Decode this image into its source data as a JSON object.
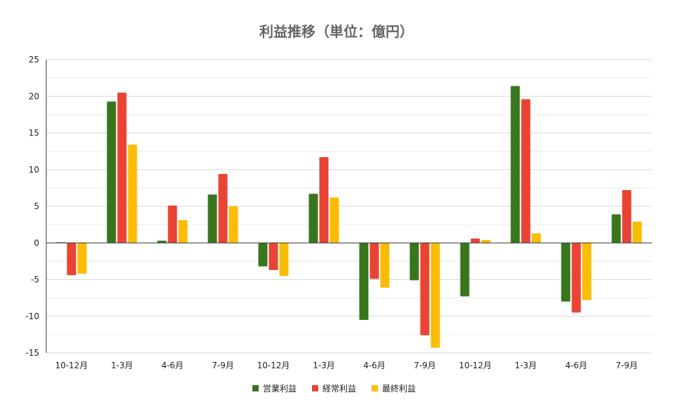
{
  "chart_data": {
    "type": "bar",
    "title": "利益推移（単位：億円）",
    "xlabel": "",
    "ylabel": "",
    "ylim": [
      -15,
      25
    ],
    "yticks": [
      25,
      20,
      15,
      10,
      5,
      0,
      -5,
      -10,
      -15
    ],
    "grid": true,
    "legend_position": "bottom",
    "categories": [
      "10-12月",
      "1-3月",
      "4-6月",
      "7-9月",
      "10-12月",
      "1-3月",
      "4-6月",
      "7-9月",
      "10-12月",
      "1-3月",
      "4-6月",
      "7-9月"
    ],
    "series": [
      {
        "name": "営業利益",
        "color": "#38761d",
        "values": [
          0.1,
          19.3,
          0.3,
          6.6,
          -3.2,
          6.7,
          -10.5,
          -5.1,
          -7.3,
          21.4,
          -8.0,
          3.9
        ]
      },
      {
        "name": "経常利益",
        "color": "#ea4335",
        "values": [
          -4.4,
          20.5,
          5.1,
          9.4,
          -3.7,
          11.7,
          -4.9,
          -12.6,
          0.6,
          19.6,
          -9.5,
          7.2
        ]
      },
      {
        "name": "最終利益",
        "color": "#fbbc04",
        "values": [
          -4.2,
          13.4,
          3.1,
          5.0,
          -4.5,
          6.2,
          -6.1,
          -14.3,
          0.4,
          1.3,
          -7.8,
          2.9
        ]
      }
    ]
  }
}
